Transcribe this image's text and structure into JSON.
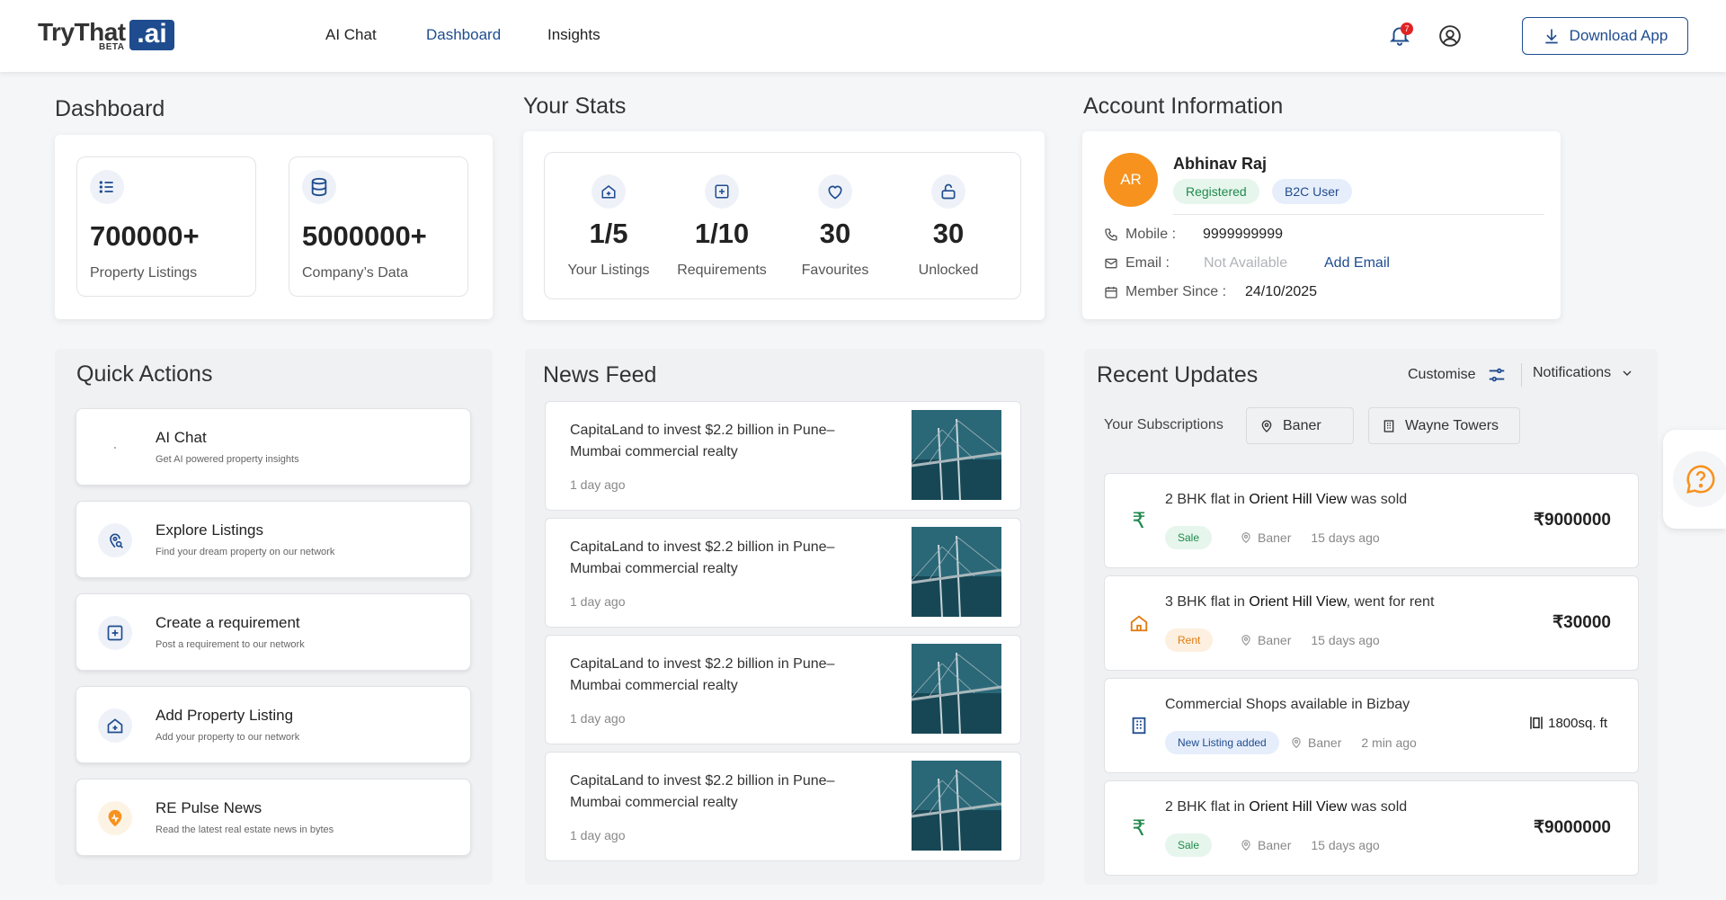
{
  "nav": {
    "logo_text": "TryThat",
    "logo_ai": ".ai",
    "logo_beta": "BETA",
    "links": [
      "AI Chat",
      "Dashboard",
      "Insights"
    ],
    "notification_count": "7",
    "download_label": "Download App"
  },
  "dashboard": {
    "title": "Dashboard",
    "cards": [
      {
        "value": "700000+",
        "label": "Property Listings",
        "icon": "list-icon"
      },
      {
        "value": "5000000+",
        "label": "Company’s Data",
        "icon": "database-icon"
      }
    ]
  },
  "stats": {
    "title": "Your Stats",
    "items": [
      {
        "value": "1/5",
        "label": "Your Listings",
        "icon": "home-plus-icon"
      },
      {
        "value": "1/10",
        "label": "Requirements",
        "icon": "plus-square-icon"
      },
      {
        "value": "30",
        "label": "Favourites",
        "icon": "heart-icon"
      },
      {
        "value": "30",
        "label": "Unlocked",
        "icon": "unlock-icon"
      }
    ]
  },
  "account": {
    "title": "Account Information",
    "initials": "AR",
    "name": "Abhinav Raj",
    "badges": [
      "Registered",
      "B2C User"
    ],
    "mobile_label": "Mobile :",
    "mobile_value": "9999999999",
    "email_label": "Email :",
    "email_value": "Not Available",
    "add_email": "Add Email",
    "member_label": "Member Since :",
    "member_value": "24/10/2025"
  },
  "quick_actions": {
    "title": "Quick Actions",
    "items": [
      {
        "title": "AI Chat",
        "desc": "Get AI powered property insights",
        "icon": "ai-chat-icon"
      },
      {
        "title": "Explore Listings",
        "desc": "Find your dream property on our network",
        "icon": "location-search-icon"
      },
      {
        "title": "Create a requirement",
        "desc": "Post a requirement to our network",
        "icon": "plus-square-icon"
      },
      {
        "title": "Add Property Listing",
        "desc": "Add your property to our network",
        "icon": "home-plus-icon"
      },
      {
        "title": "RE Pulse News",
        "desc": "Read the latest real estate news in bytes",
        "icon": "pulse-news-icon"
      }
    ]
  },
  "news": {
    "title": "News Feed",
    "items": [
      {
        "title": "CapitaLand to invest $2.2 billion in Pune–Mumbai commercial realty",
        "time": "1 day ago"
      },
      {
        "title": "CapitaLand to invest $2.2 billion in Pune–Mumbai commercial realty",
        "time": "1 day ago"
      },
      {
        "title": "CapitaLand to invest $2.2 billion in Pune–Mumbai commercial realty",
        "time": "1 day ago"
      },
      {
        "title": "CapitaLand to invest $2.2 billion in Pune–Mumbai commercial realty",
        "time": "1 day ago"
      }
    ]
  },
  "updates": {
    "title": "Recent Updates",
    "customise": "Customise",
    "notifications": "Notifications",
    "subscriptions_label": "Your Subscriptions",
    "subscriptions": [
      "Baner",
      "Wayne Towers"
    ],
    "items": [
      {
        "pre": "2 BHK flat in ",
        "bold": "Orient Hill View",
        "post": " was sold",
        "tag": "Sale",
        "location": "Baner",
        "time": "15 days ago",
        "price": "9000000",
        "icon": "rupee-icon"
      },
      {
        "pre": "3 BHK flat in ",
        "bold": "Orient Hill View",
        "post": ", went for rent",
        "tag": "Rent",
        "location": "Baner",
        "time": "15 days ago",
        "price": "30000",
        "icon": "home-icon"
      },
      {
        "pre": "Commercial Shops available in Bizbay",
        "bold": "",
        "post": "",
        "tag": "New Listing added",
        "location": "Baner",
        "time": "2 min ago",
        "price": "1800sq. ft",
        "icon": "building-icon"
      },
      {
        "pre": "2 BHK flat in ",
        "bold": "Orient Hill View",
        "post": " was sold",
        "tag": "Sale",
        "location": "Baner",
        "time": "15 days ago",
        "price": "9000000",
        "icon": "rupee-icon"
      }
    ]
  },
  "colors": {
    "brand": "#1f4c8f",
    "accent_orange": "#f7921e",
    "sale_green": "#1f8a4c"
  }
}
